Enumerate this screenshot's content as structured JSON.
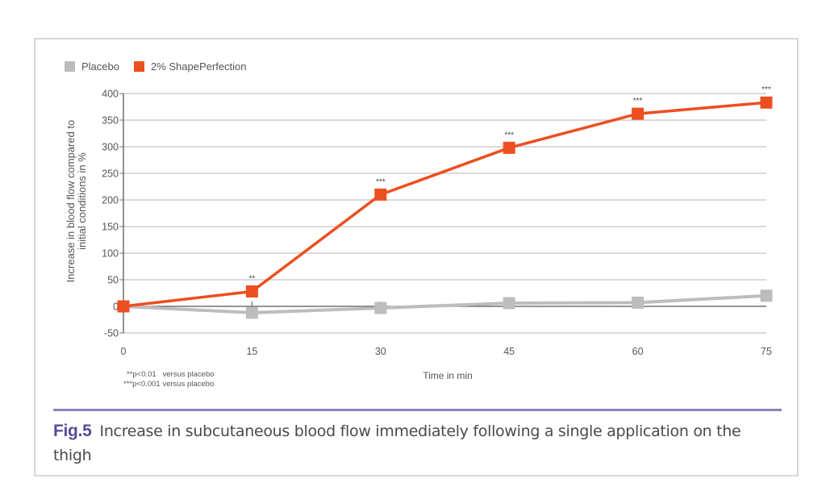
{
  "legend": [
    {
      "label": "Placebo",
      "color": "#bdbdbd"
    },
    {
      "label": "2% ShapePerfection",
      "color": "#ec4f1f"
    }
  ],
  "footnotes": [
    "**p<0.01   versus placebo",
    "***p<0.001 versus placebo"
  ],
  "caption": {
    "fig_label": "Fig.5",
    "text": "Increase in subcutaneous blood flow immediately following a single application on the thigh"
  },
  "chart_data": {
    "type": "line",
    "title": "",
    "xlabel": "Time in min",
    "ylabel": "Increase in blood flow compared to initial conditions in %",
    "x": [
      0,
      15,
      30,
      45,
      60,
      75
    ],
    "xticks": [
      "0",
      "15",
      "30",
      "45",
      "60",
      "75"
    ],
    "yticks": [
      "400",
      "350",
      "300",
      "250",
      "200",
      "150",
      "100",
      "50",
      "0",
      "-50"
    ],
    "ylim": [
      -50,
      400
    ],
    "xlim": [
      0,
      75
    ],
    "grid": "horizontal",
    "legend_position": "top-left",
    "series": [
      {
        "name": "Placebo",
        "color": "#bdbdbd",
        "values": [
          0,
          -12,
          -3,
          6,
          7,
          20
        ]
      },
      {
        "name": "2% ShapePerfection",
        "color": "#ec4f1f",
        "values": [
          0,
          28,
          210,
          298,
          362,
          383
        ],
        "significance": [
          "",
          "**",
          "***",
          "***",
          "***",
          "***"
        ]
      }
    ]
  }
}
